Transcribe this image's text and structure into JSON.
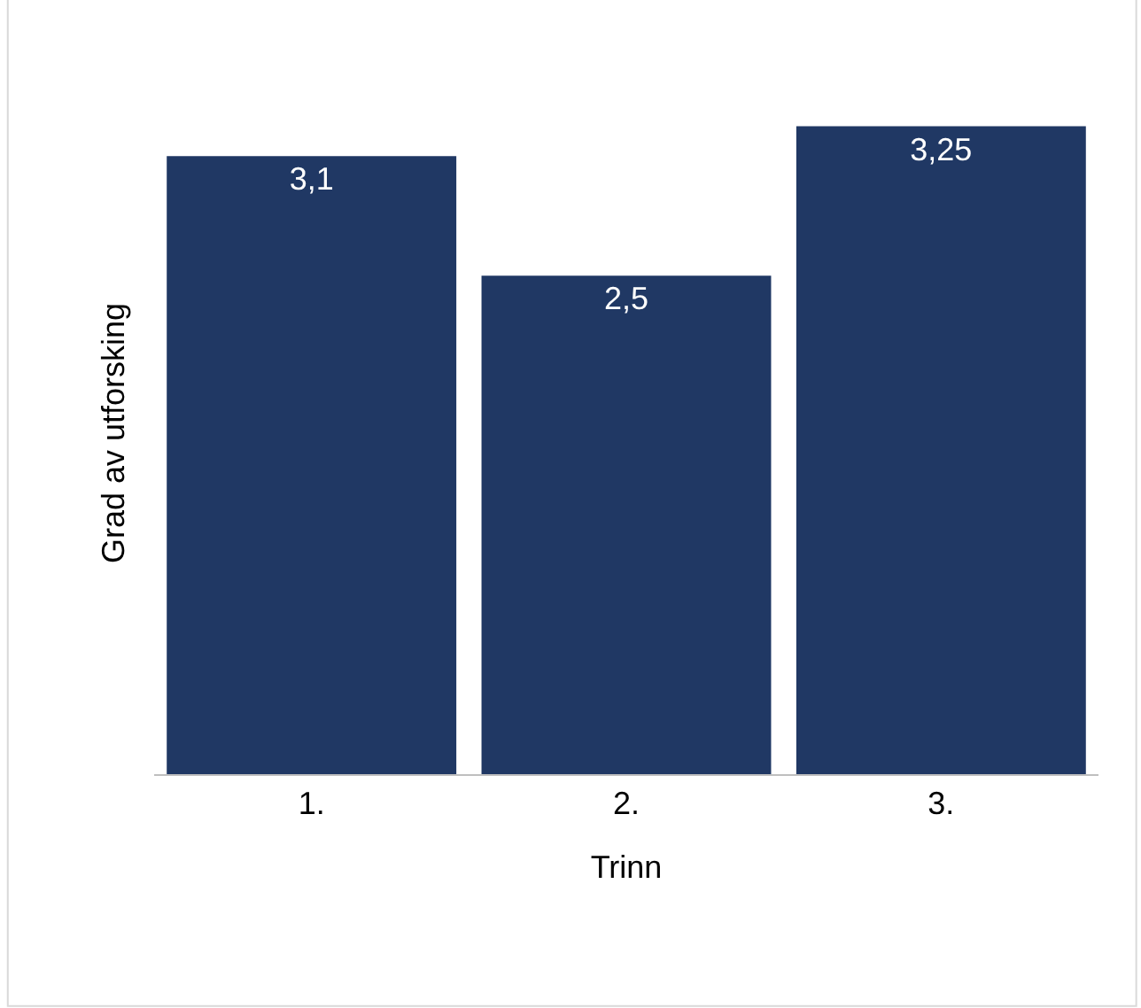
{
  "chart_data": {
    "type": "bar",
    "xlabel": "Trinn",
    "ylabel": "Grad av utforsking",
    "categories": [
      "1.",
      "2.",
      "3."
    ],
    "values": [
      3.1,
      2.5,
      3.25
    ],
    "value_labels": [
      "3,1",
      "2,5",
      "3,25"
    ],
    "color": "#203864",
    "tick_labels": "x",
    "legend": false
  }
}
